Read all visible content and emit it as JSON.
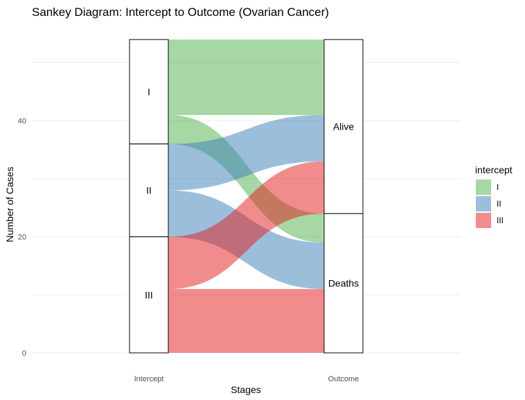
{
  "chart_data": {
    "type": "sankey",
    "title": "Sankey Diagram: Intercept to Outcome (Ovarian Cancer)",
    "xlabel": "Stages",
    "ylabel": "Number of Cases",
    "axes": [
      "Intercept",
      "Outcome"
    ],
    "ylim": [
      0,
      54
    ],
    "y_ticks": [
      0,
      20,
      40
    ],
    "grid": true,
    "legend": {
      "title": "intercept",
      "position": "right",
      "entries": [
        "I",
        "II",
        "III"
      ]
    },
    "colors": {
      "I": "#4DAF4A",
      "II": "#377EB8",
      "III": "#E41A1C"
    },
    "stage1_strata": [
      {
        "label": "I",
        "value": 18
      },
      {
        "label": "II",
        "value": 16
      },
      {
        "label": "III",
        "value": 20
      }
    ],
    "stage2_strata": [
      {
        "label": "Alive",
        "value": 30
      },
      {
        "label": "Deaths",
        "value": 24
      }
    ],
    "flows": [
      {
        "intercept": "I",
        "outcome": "Alive",
        "value": 13
      },
      {
        "intercept": "I",
        "outcome": "Deaths",
        "value": 5
      },
      {
        "intercept": "II",
        "outcome": "Alive",
        "value": 8
      },
      {
        "intercept": "II",
        "outcome": "Deaths",
        "value": 8
      },
      {
        "intercept": "III",
        "outcome": "Alive",
        "value": 9
      },
      {
        "intercept": "III",
        "outcome": "Deaths",
        "value": 11
      }
    ]
  }
}
